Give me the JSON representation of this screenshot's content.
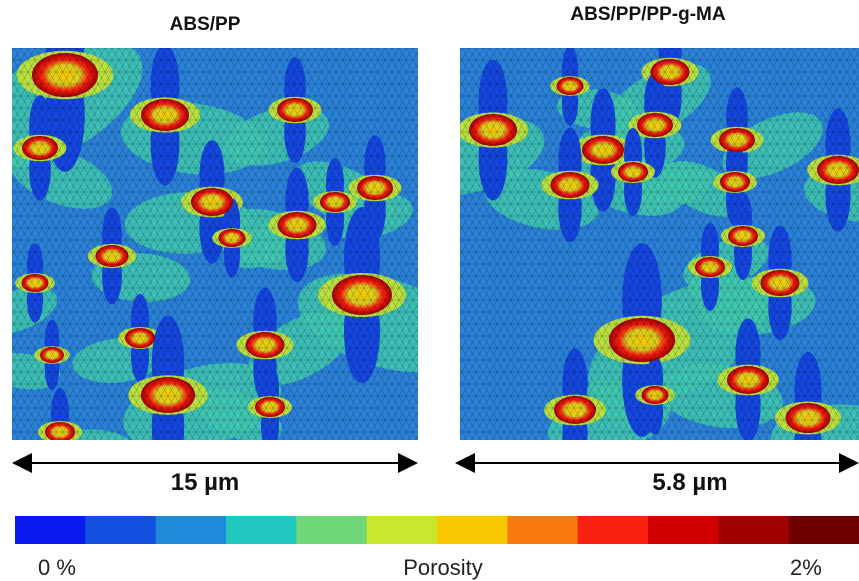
{
  "panels": [
    {
      "title": "ABS/PP",
      "scale": "15 µm"
    },
    {
      "title": "ABS/PP/PP-g-MA",
      "scale": "5.8 µm"
    }
  ],
  "colorbar": {
    "colors": [
      "#0a1aee",
      "#1450e0",
      "#1e8ad8",
      "#20c8c0",
      "#70d878",
      "#c8e830",
      "#f8c800",
      "#f87810",
      "#f82010",
      "#d00000",
      "#a00000",
      "#700000"
    ],
    "min_label": "0 %",
    "title": "Porosity",
    "max_label": "2%"
  }
}
